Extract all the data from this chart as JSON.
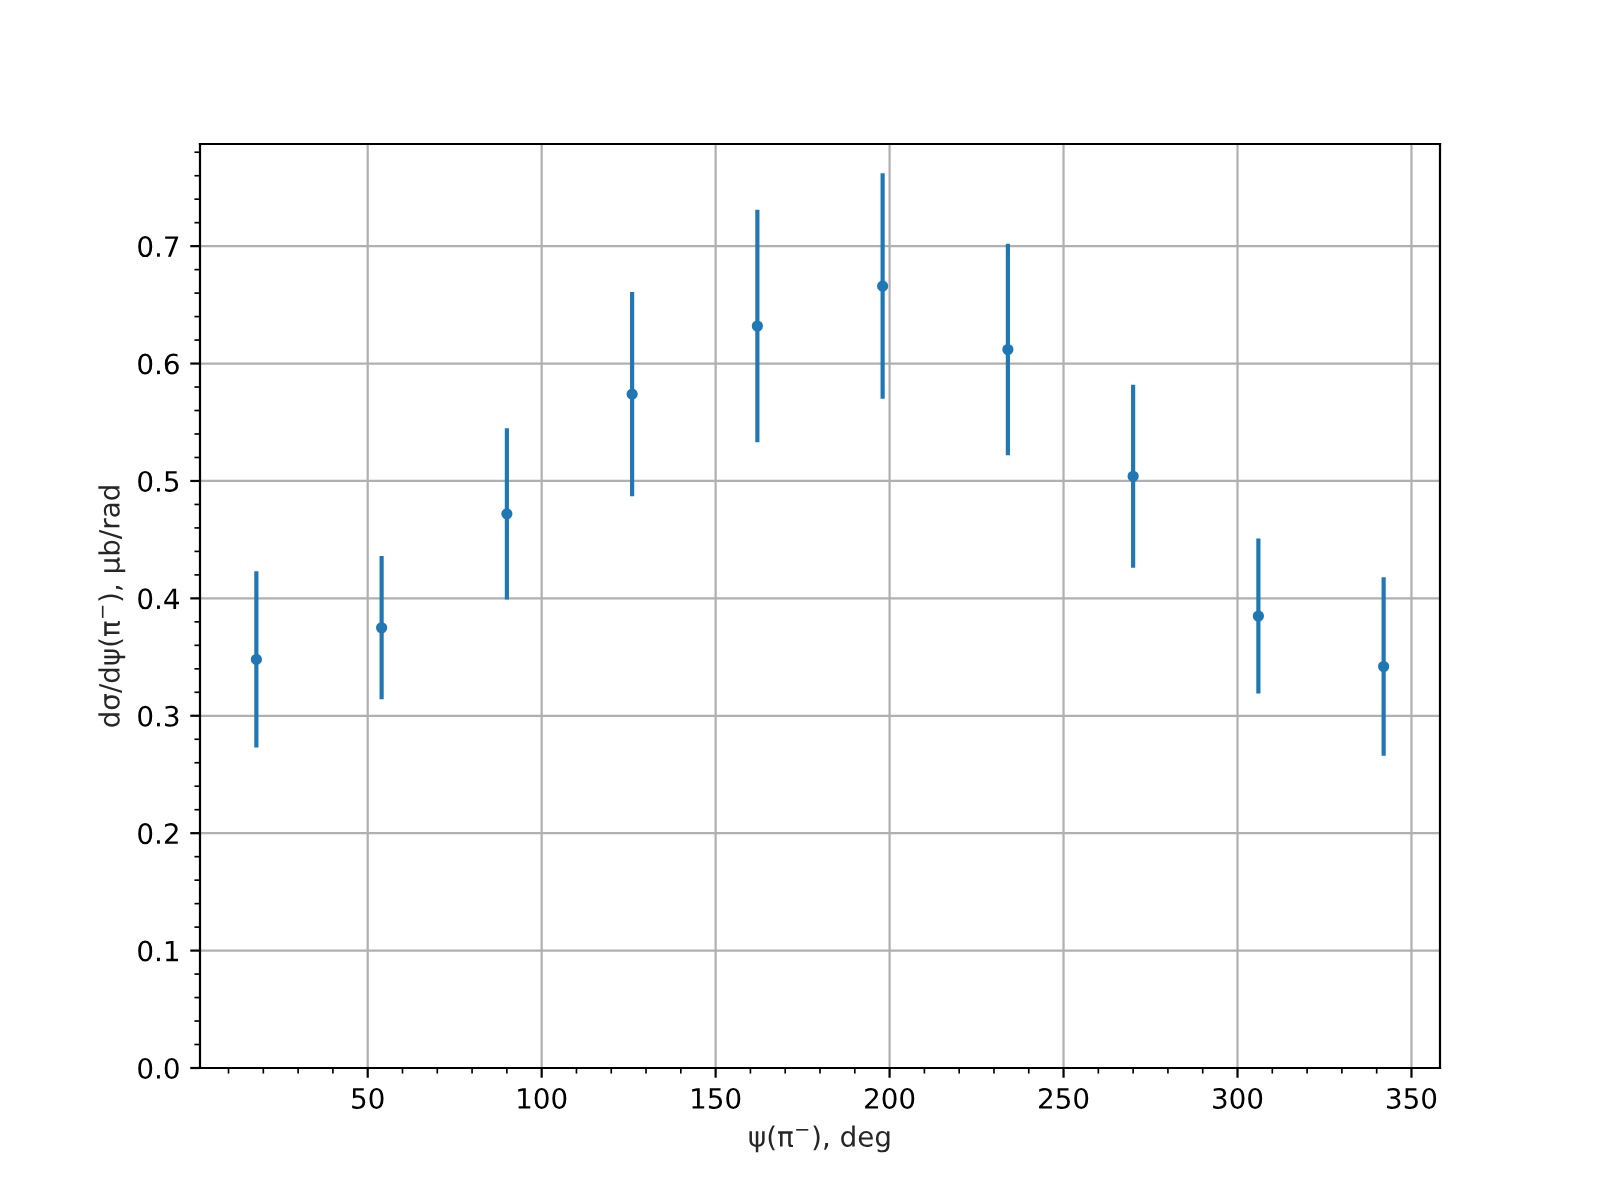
{
  "chart_data": {
    "type": "scatter",
    "xlabel": "ψ(π$^{−}$), deg",
    "ylabel": "dσ/dψ(π$^{−}$), μb/rad",
    "x": [
      18,
      54,
      90,
      126,
      162,
      198,
      234,
      270,
      306,
      342
    ],
    "values": [
      0.348,
      0.375,
      0.472,
      0.574,
      0.632,
      0.666,
      0.612,
      0.504,
      0.385,
      0.342
    ],
    "errors": [
      0.075,
      0.061,
      0.073,
      0.087,
      0.099,
      0.096,
      0.09,
      0.078,
      0.066,
      0.076
    ],
    "color": "#1f77b4",
    "marker": "circle",
    "xlim": [
      1.8,
      358.2
    ],
    "ylim": [
      0,
      0.787
    ],
    "xticks": [
      50,
      100,
      150,
      200,
      250,
      300,
      350
    ],
    "yticks": [
      {
        "value": 0,
        "label": "0.0"
      },
      0.1,
      0.2,
      0.3,
      0.4,
      0.5,
      0.6,
      0.7
    ],
    "grid": true
  }
}
